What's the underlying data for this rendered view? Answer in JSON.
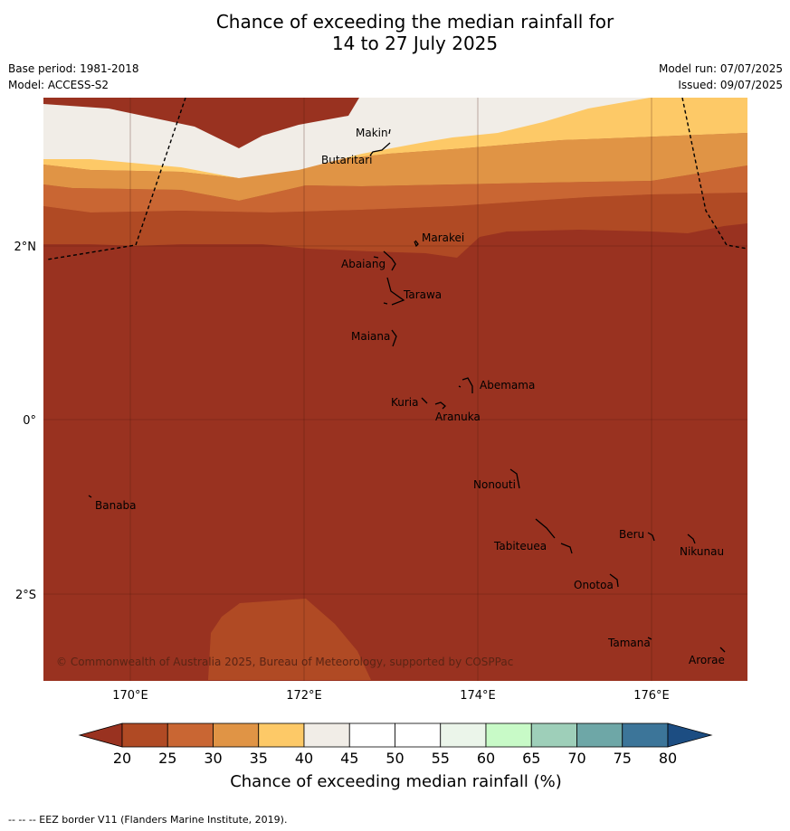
{
  "title": {
    "line1": "Chance of exceeding the median rainfall for",
    "line2": "14 to 27 July 2025"
  },
  "meta": {
    "base_period": "Base period: 1981-2018",
    "model": "Model: ACCESS-S2",
    "model_run": "Model run: 07/07/2025",
    "issued": "Issued: 09/07/2025"
  },
  "map": {
    "lat_labels": [
      "2°N",
      "0°",
      "2°S"
    ],
    "lon_labels": [
      "170°E",
      "172°E",
      "174°E",
      "176°E"
    ],
    "places": [
      {
        "name": "Makin"
      },
      {
        "name": "Butaritari"
      },
      {
        "name": "Marakei"
      },
      {
        "name": "Abaiang"
      },
      {
        "name": "Tarawa"
      },
      {
        "name": "Maiana"
      },
      {
        "name": "Abemama"
      },
      {
        "name": "Kuria"
      },
      {
        "name": "Aranuka"
      },
      {
        "name": "Nonouti"
      },
      {
        "name": "Banaba"
      },
      {
        "name": "Beru"
      },
      {
        "name": "Tabiteuea"
      },
      {
        "name": "Nikunau"
      },
      {
        "name": "Onotoa"
      },
      {
        "name": "Tamana"
      },
      {
        "name": "Arorae"
      }
    ],
    "copyright": "© Commonwealth of Australia 2025, Bureau of Meteorology, supported by COSPPac",
    "band_colors": {
      "c20": "#993220",
      "c25": "#b04a24",
      "c30": "#c96633",
      "c35": "#e09445",
      "c40": "#fdc967",
      "c45": "#f1ede7"
    }
  },
  "colorbar": {
    "ticks": [
      "20",
      "25",
      "30",
      "35",
      "40",
      "45",
      "50",
      "55",
      "60",
      "65",
      "70",
      "75",
      "80"
    ],
    "colors": [
      "#b04a24",
      "#c96633",
      "#e09445",
      "#fdc967",
      "#f1ede7",
      "#ffffff",
      "#ffffff",
      "#ebf5ea",
      "#c8fac7",
      "#9ecfb9",
      "#6ea7a7",
      "#3c7599"
    ],
    "under_color": "#993220",
    "over_color": "#1c4d82",
    "label": "Chance of exceeding median rainfall (%)"
  },
  "footer": "--  --  -- EEZ border V11 (Flanders Marine Institute, 2019)."
}
